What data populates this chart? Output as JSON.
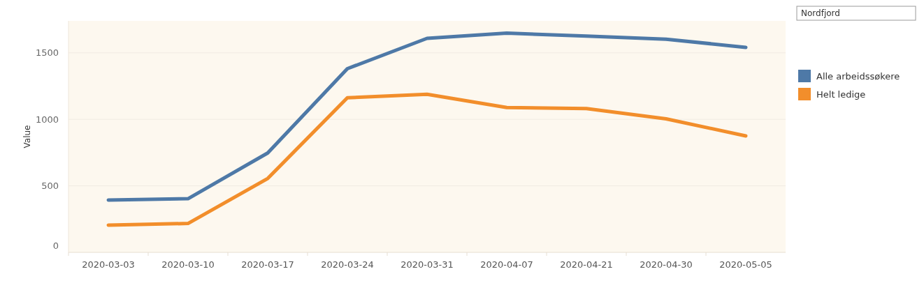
{
  "chart_data": {
    "type": "line",
    "categories": [
      "2020-03-03",
      "2020-03-10",
      "2020-03-17",
      "2020-03-24",
      "2020-03-31",
      "2020-04-07",
      "2020-04-21",
      "2020-04-30",
      "2020-05-05"
    ],
    "series": [
      {
        "name": "Alle arbeidssøkere",
        "color": "#4e79a7",
        "values": [
          393,
          403,
          747,
          1381,
          1609,
          1648,
          1626,
          1603,
          1541
        ]
      },
      {
        "name": "Helt ledige",
        "color": "#f28e2b",
        "values": [
          205,
          217,
          555,
          1162,
          1188,
          1089,
          1081,
          1004,
          875
        ]
      }
    ],
    "ylabel": "Value",
    "ylim": [
      0,
      1740
    ],
    "yticks": [
      0,
      500,
      1000,
      1500
    ],
    "grid": "y",
    "legend": "right",
    "marker": "none",
    "annotations": [
      "Nordfjord"
    ]
  }
}
